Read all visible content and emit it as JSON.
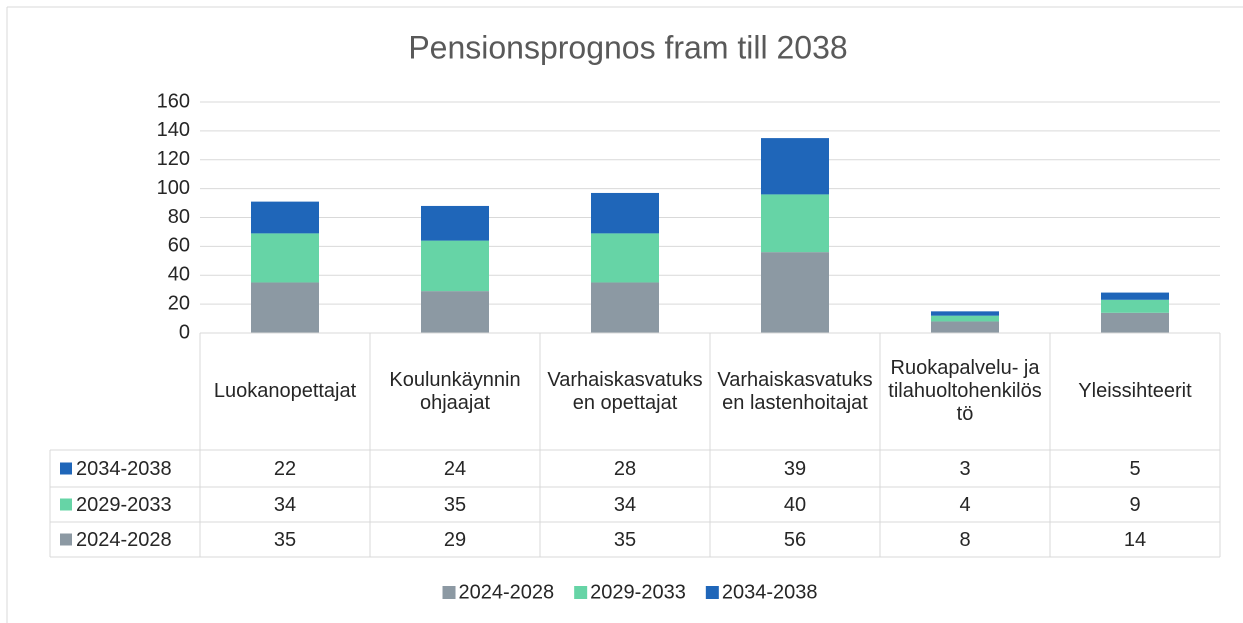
{
  "chart_data": {
    "type": "bar",
    "stacked": true,
    "title": "Pensionsprognos fram till 2038",
    "categories": [
      "Luokanopettajat",
      "Koulunkäynnin ohjaajat",
      "Varhaiskasvatuksen opettajat",
      "Varhaiskasvatuksen lastenhoitajat",
      "Ruokapalvelu- ja tilahuoltohenkilöstö",
      "Yleissihteerit"
    ],
    "series": [
      {
        "name": "2024-2028",
        "color": "#8c99a3",
        "values": [
          35,
          29,
          35,
          56,
          8,
          14
        ]
      },
      {
        "name": "2029-2033",
        "color": "#66d4a6",
        "values": [
          34,
          35,
          34,
          40,
          4,
          9
        ]
      },
      {
        "name": "2034-2038",
        "color": "#1f66b9",
        "values": [
          22,
          24,
          28,
          39,
          3,
          5
        ]
      }
    ],
    "ylim": [
      0,
      160
    ],
    "yticks": [
      0,
      20,
      40,
      60,
      80,
      100,
      120,
      140,
      160
    ],
    "grid": true,
    "legend": "bottom",
    "data_table": true
  }
}
